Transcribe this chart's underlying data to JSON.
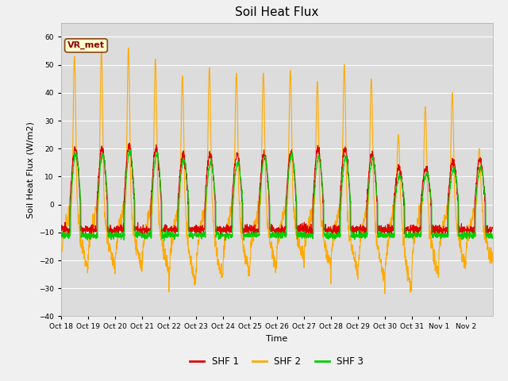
{
  "title": "Soil Heat Flux",
  "ylabel": "Soil Heat Flux (W/m2)",
  "xlabel": "Time",
  "ylim": [
    -40,
    65
  ],
  "yticks": [
    -40,
    -30,
    -20,
    -10,
    0,
    10,
    20,
    30,
    40,
    50,
    60
  ],
  "bg_color": "#dcdcdc",
  "fig_color": "#f0f0f0",
  "shf1_color": "#dd0000",
  "shf2_color": "#ffaa00",
  "shf3_color": "#00cc00",
  "vr_met_label": "VR_met",
  "x_tick_labels": [
    "Oct 18",
    "Oct 19",
    "Oct 20",
    "Oct 21",
    "Oct 22",
    "Oct 23",
    "Oct 24",
    "Oct 25",
    "Oct 26",
    "Oct 27",
    "Oct 28",
    "Oct 29",
    "Oct 30",
    "Oct 31",
    "Nov 1",
    "Nov 2"
  ],
  "num_days": 16,
  "pts_per_day": 144,
  "shf2_day_peaks": [
    53,
    55,
    56,
    52,
    46,
    49,
    47,
    47,
    48,
    44,
    50,
    45,
    25,
    35,
    40,
    20
  ],
  "shf2_night_troughs": [
    -23,
    -22,
    -23,
    -24,
    -29,
    -27,
    -25,
    -23,
    -19,
    -22,
    -24,
    -27,
    -31,
    -26,
    -22,
    -21
  ],
  "shf1_day_peaks": [
    20,
    20,
    21,
    20,
    18,
    18,
    18,
    18,
    19,
    20,
    20,
    18,
    13,
    13,
    16,
    16
  ],
  "shf3_day_peaks": [
    18,
    18,
    19,
    18,
    16,
    15,
    15,
    17,
    18,
    17,
    17,
    16,
    10,
    11,
    13,
    13
  ]
}
